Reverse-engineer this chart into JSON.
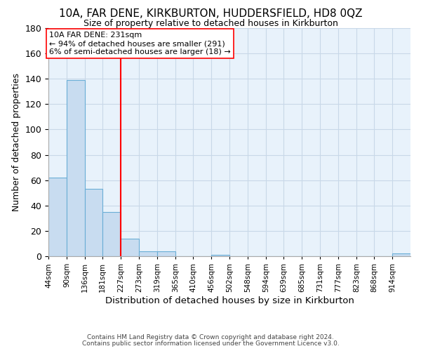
{
  "title": "10A, FAR DENE, KIRKBURTON, HUDDERSFIELD, HD8 0QZ",
  "subtitle": "Size of property relative to detached houses in Kirkburton",
  "xlabel": "Distribution of detached houses by size in Kirkburton",
  "ylabel": "Number of detached properties",
  "footnote1": "Contains HM Land Registry data © Crown copyright and database right 2024.",
  "footnote2": "Contains public sector information licensed under the Government Licence v3.0.",
  "bin_edges": [
    44,
    90,
    136,
    181,
    227,
    273,
    319,
    365,
    410,
    456,
    502,
    548,
    594,
    639,
    685,
    731,
    777,
    823,
    868,
    914,
    960
  ],
  "bar_heights": [
    62,
    139,
    53,
    35,
    14,
    4,
    4,
    0,
    0,
    1,
    0,
    0,
    0,
    0,
    0,
    0,
    0,
    0,
    0,
    2
  ],
  "bar_color": "#c8dcf0",
  "bar_edge_color": "#6aaed6",
  "grid_color": "#c8d8e8",
  "bg_color": "#e8f2fb",
  "red_line_x": 227,
  "ann_line1": "10A FAR DENE: 231sqm",
  "ann_line2": "← 94% of detached houses are smaller (291)",
  "ann_line3": "6% of semi-detached houses are larger (18) →",
  "ylim_max": 180,
  "yticks": [
    0,
    20,
    40,
    60,
    80,
    100,
    120,
    140,
    160,
    180
  ]
}
